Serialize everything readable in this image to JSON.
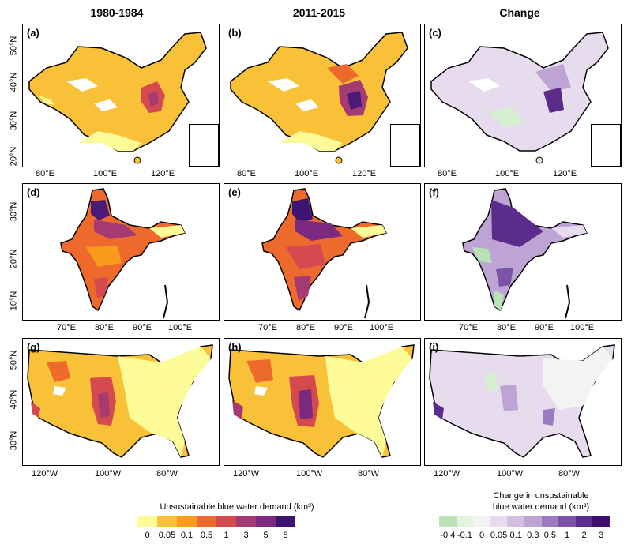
{
  "columns": [
    "1980-1984",
    "2011-2015",
    "Change"
  ],
  "panels": [
    "(a)",
    "(b)",
    "(c)",
    "(d)",
    "(e)",
    "(f)",
    "(g)",
    "(h)",
    "(i)"
  ],
  "china": {
    "yticks": [
      "50°N",
      "40°N",
      "30°N",
      "20°N"
    ],
    "xticks": [
      "80°E",
      "100°E",
      "120°E"
    ]
  },
  "india": {
    "yticks": [
      "30°N",
      "20°N",
      "10°N"
    ],
    "xticks": [
      "70°E",
      "80°E",
      "90°E",
      "100°E"
    ]
  },
  "usa": {
    "yticks": [
      "50°N",
      "40°N",
      "30°N"
    ],
    "xticks": [
      "120°W",
      "100°W",
      "80°W"
    ]
  },
  "legend_demand": {
    "title": "Unsustainable blue water demand (km³)",
    "ticks": [
      "0",
      "0.05",
      "0.1",
      "0.5",
      "1",
      "3",
      "5",
      "8"
    ],
    "colors": [
      "#fcfb97",
      "#f9c137",
      "#f99b1c",
      "#ee6a2c",
      "#d44a4f",
      "#a63a73",
      "#7b2a80",
      "#3b1571"
    ]
  },
  "legend_change": {
    "title_line1": "Change in unsustainable",
    "title_line2": "blue water demand (km³)",
    "ticks": [
      "-0.4",
      "-0.1",
      "0",
      "0.05",
      "0.1",
      "0.3",
      "0.5",
      "1",
      "2",
      "3"
    ],
    "colors": [
      "#b9e3b4",
      "#e2f3de",
      "#f3f3f3",
      "#e7dcee",
      "#d2bfe0",
      "#bda4d4",
      "#9c7cc0",
      "#7b52a6",
      "#5b2c8a",
      "#3f0f6b"
    ]
  },
  "colors": {
    "land_base": "#f9c137",
    "low": "#fcfb97",
    "mid": "#ee6a2c",
    "high": "#a63a73",
    "top": "#4a1a78",
    "change_base": "#e7dcee",
    "change_mid": "#bda4d4",
    "change_high": "#5b2c8a",
    "change_green": "#d6efd0"
  }
}
